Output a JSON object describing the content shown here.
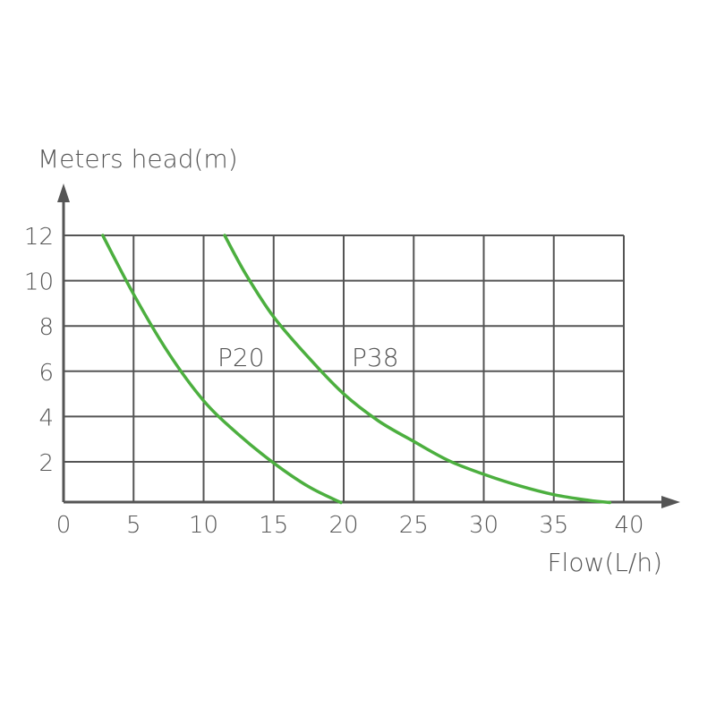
{
  "chart_data": {
    "type": "line",
    "title": "",
    "xlabel": "Flow(L/h)",
    "ylabel": "Meters head(m)",
    "xlim": [
      0,
      40
    ],
    "ylim": [
      0,
      12
    ],
    "x_ticks": [
      "0",
      "5",
      "10",
      "15",
      "20",
      "25",
      "30",
      "35",
      "40"
    ],
    "y_ticks": [
      "2",
      "4",
      "6",
      "8",
      "10",
      "12"
    ],
    "grid": true,
    "series": [
      {
        "name": "P20",
        "color": "#4caf3f",
        "points": [
          [
            2.8,
            12
          ],
          [
            5,
            9.4
          ],
          [
            7.5,
            6.8
          ],
          [
            10,
            4.7
          ],
          [
            12.5,
            3.2
          ],
          [
            15,
            1.95
          ],
          [
            17.5,
            0.9
          ],
          [
            19.8,
            0.2
          ]
        ]
      },
      {
        "name": "P38",
        "color": "#4caf3f",
        "points": [
          [
            11.5,
            12
          ],
          [
            13,
            10.3
          ],
          [
            15,
            8.4
          ],
          [
            17.5,
            6.6
          ],
          [
            20,
            5.0
          ],
          [
            22.5,
            3.8
          ],
          [
            25,
            2.9
          ],
          [
            27.5,
            2.05
          ],
          [
            30,
            1.45
          ],
          [
            32.5,
            0.95
          ],
          [
            35,
            0.55
          ],
          [
            37.5,
            0.3
          ],
          [
            39,
            0.2
          ]
        ]
      }
    ]
  }
}
